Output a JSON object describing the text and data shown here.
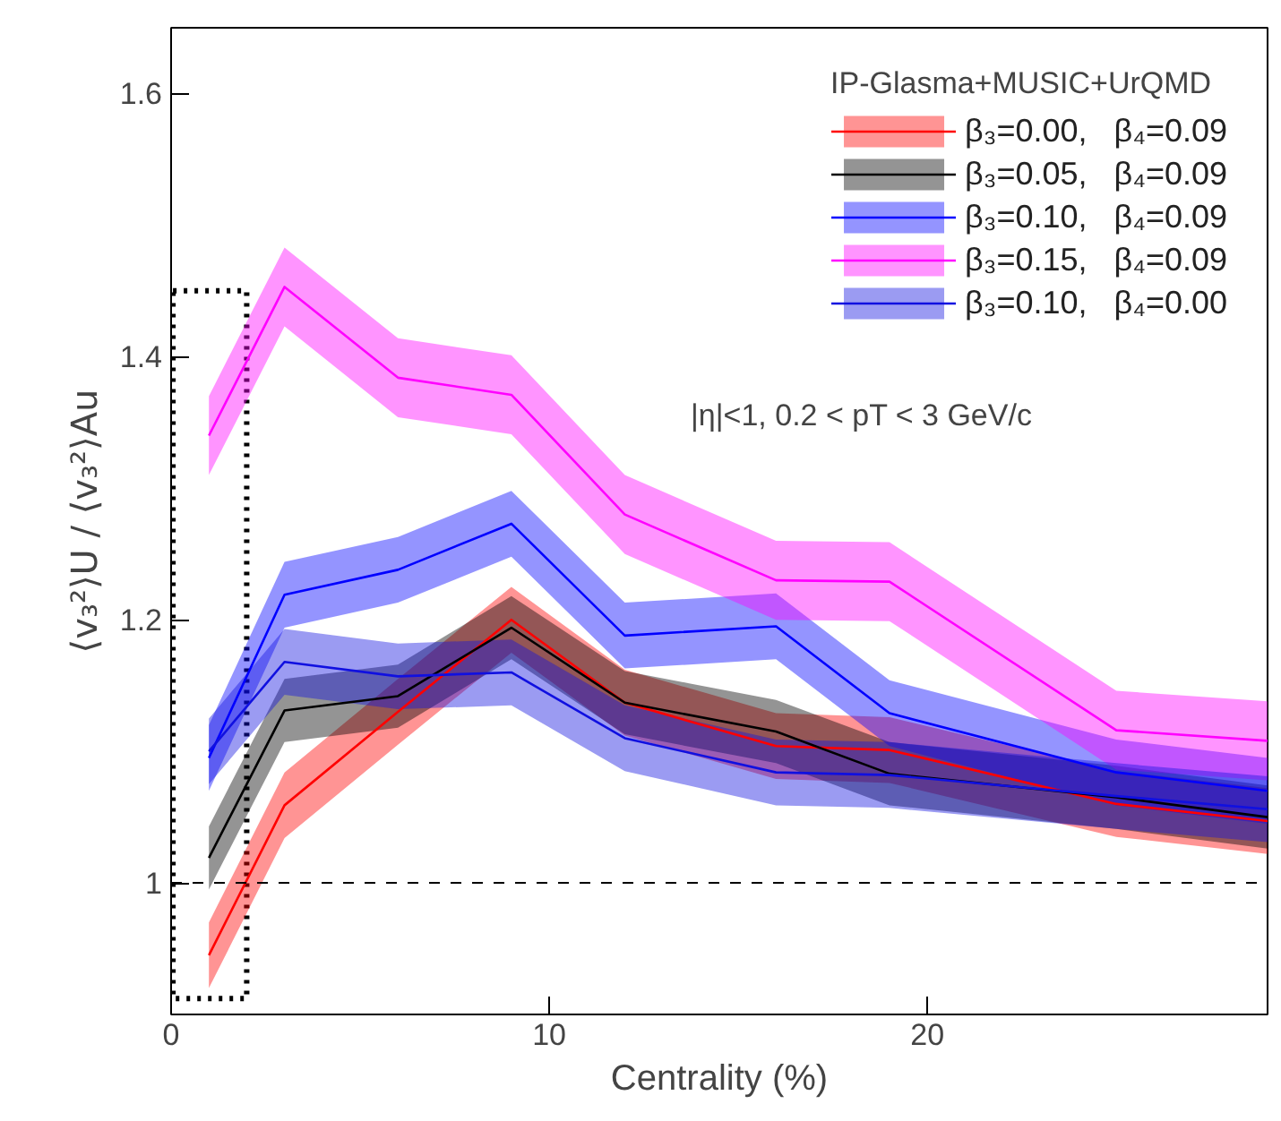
{
  "chart_data": {
    "type": "line",
    "xlabel": "Centrality (%)",
    "ylabel": "⟨v₃²⟩U / ⟨v₃²⟩Au",
    "legend_title": "IP-Glasma+MUSIC+UrQMD",
    "x": [
      1,
      3,
      6,
      9,
      12,
      16,
      19,
      25,
      29
    ],
    "series": [
      {
        "name": "β₃=0.00,   β₄=0.09",
        "color": "#ff0000",
        "values": [
          0.945,
          1.059,
          1.13,
          1.2,
          1.137,
          1.104,
          1.101,
          1.06,
          1.047
        ],
        "lower": [
          0.92,
          1.034,
          1.105,
          1.175,
          1.112,
          1.079,
          1.076,
          1.035,
          1.022
        ],
        "upper": [
          0.97,
          1.084,
          1.155,
          1.225,
          1.162,
          1.129,
          1.126,
          1.085,
          1.072
        ]
      },
      {
        "name": "β₃=0.05,   β₄=0.09",
        "color": "#000000",
        "values": [
          1.019,
          1.131,
          1.142,
          1.194,
          1.137,
          1.115,
          1.083,
          1.065,
          1.05
        ],
        "lower": [
          0.995,
          1.107,
          1.118,
          1.17,
          1.113,
          1.091,
          1.059,
          1.041,
          1.026
        ],
        "upper": [
          1.043,
          1.155,
          1.166,
          1.218,
          1.161,
          1.139,
          1.107,
          1.089,
          1.074
        ]
      },
      {
        "name": "β₃=0.10,   β₄=0.09",
        "color": "#0000ff",
        "values": [
          1.095,
          1.219,
          1.238,
          1.273,
          1.188,
          1.195,
          1.129,
          1.084,
          1.07
        ],
        "lower": [
          1.07,
          1.194,
          1.213,
          1.248,
          1.163,
          1.17,
          1.104,
          1.059,
          1.045
        ],
        "upper": [
          1.12,
          1.244,
          1.263,
          1.298,
          1.213,
          1.22,
          1.154,
          1.109,
          1.095
        ]
      },
      {
        "name": "β₃=0.15,   β₄=0.09",
        "color": "#ff00ff",
        "values": [
          1.34,
          1.453,
          1.384,
          1.371,
          1.28,
          1.23,
          1.229,
          1.116,
          1.108
        ],
        "lower": [
          1.31,
          1.423,
          1.354,
          1.341,
          1.25,
          1.2,
          1.199,
          1.086,
          1.078
        ],
        "upper": [
          1.37,
          1.483,
          1.414,
          1.401,
          1.31,
          1.26,
          1.259,
          1.146,
          1.138
        ]
      },
      {
        "name": "β₃=0.10,   β₄=0.00",
        "color": "#1010e0",
        "values": [
          1.1,
          1.168,
          1.157,
          1.16,
          1.11,
          1.084,
          1.082,
          1.066,
          1.056
        ],
        "lower": [
          1.075,
          1.143,
          1.132,
          1.135,
          1.085,
          1.059,
          1.057,
          1.041,
          1.031
        ],
        "upper": [
          1.125,
          1.193,
          1.182,
          1.185,
          1.135,
          1.109,
          1.107,
          1.091,
          1.081
        ]
      }
    ],
    "annotations": [
      "|η|<1, 0.2 < pT < 3 GeV/c"
    ],
    "ref_lines": [
      {
        "axis": "y",
        "value": 1,
        "label": null,
        "line_style": "dashed"
      }
    ],
    "xlim": [
      0,
      29
    ],
    "ylim": [
      0.9,
      1.65
    ],
    "xticks": [
      0,
      10,
      20
    ],
    "yticks": [
      {
        "value": 1,
        "label": "1"
      },
      1.2,
      1.4,
      1.6
    ],
    "legend": "top right",
    "grid": false,
    "marker": "none",
    "line_style": "solid"
  }
}
